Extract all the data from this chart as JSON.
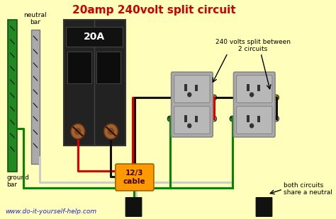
{
  "title": "20amp 240volt split circuit",
  "title_color": "#cc0000",
  "title_fontsize": 11,
  "bg_color": "#ffffbb",
  "website": "www.do-it-yourself-help.com",
  "website_color": "#2222cc",
  "annotation_1": "240 volts split between\n2 circuits",
  "annotation_2": "12/3\ncable",
  "annotation_2_bg": "#ff9900",
  "annotation_3": "both circuits\nshare a neutral",
  "annotation_4": "neutral\nbar",
  "annotation_5": "ground\nbar",
  "label_20A": "20A",
  "wire_red": "#dd0000",
  "wire_black": "#111111",
  "wire_green": "#008800",
  "wire_white": "#cccccc",
  "breaker_body": "#1a1a1a",
  "breaker_screws": "#8B5A2B",
  "neutral_bar_color": "#aaaaaa",
  "green_bar_color": "#228822",
  "outlet_body": "#aaaaaa",
  "outlet_face": "#c0c0c0",
  "outlet_slot": "#333333"
}
